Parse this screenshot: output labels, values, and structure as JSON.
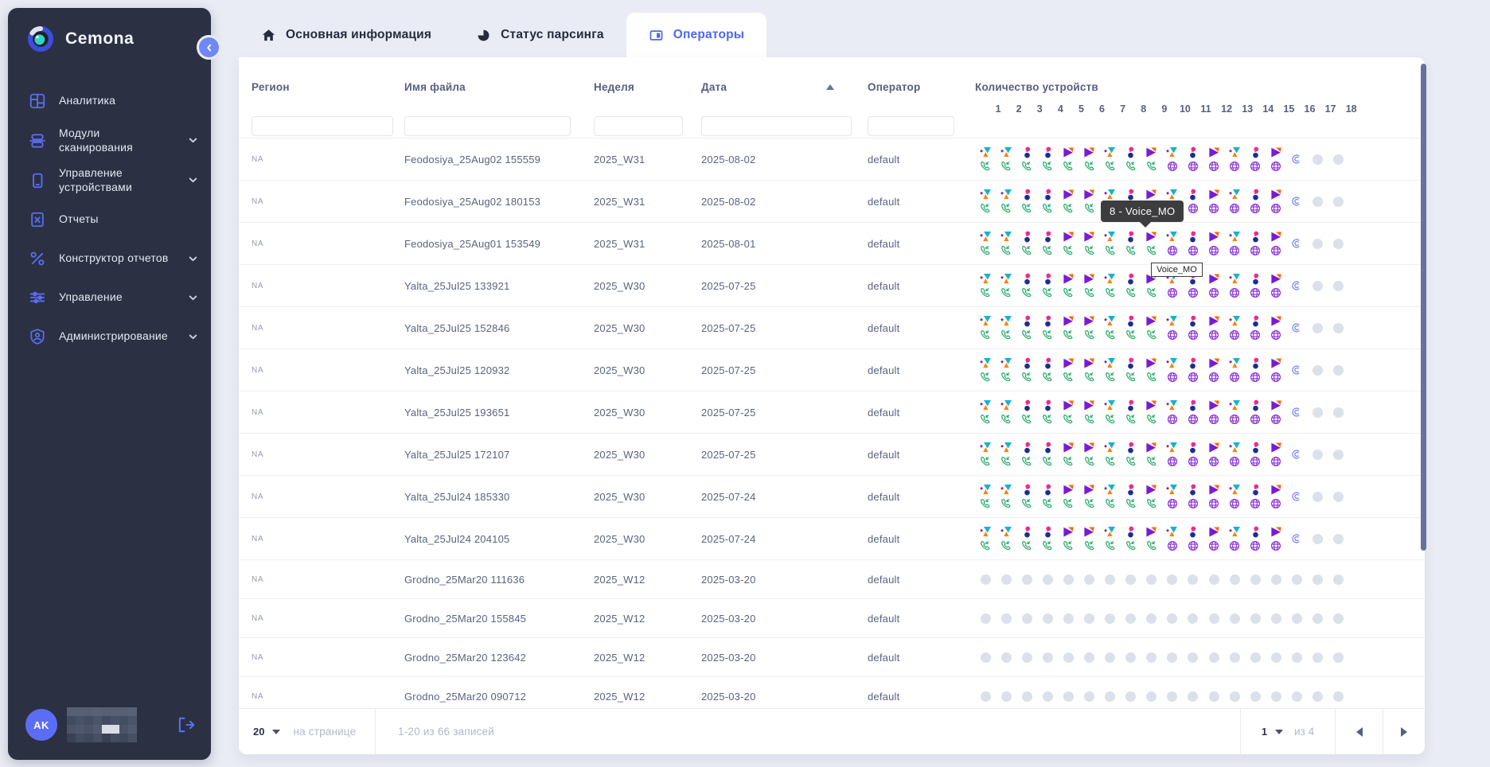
{
  "app": {
    "name": "Cemona",
    "user_initials": "AK"
  },
  "colors": {
    "sidebar_bg": "#2b3142",
    "accent_blue": "#5b6cf5",
    "active_tab_blue": "#4d68f0",
    "page_bg": "#e9ecf4",
    "operator_teal": "#17b3cb",
    "operator_orange": "#f8820c",
    "operator_pink": "#ee2a8e",
    "operator_navy": "#1c2e8f",
    "operator_purple": "#7a1bd3",
    "phone_green": "#21ab66",
    "globe_purple": "#8b2fd6",
    "empty_dot": "#dce0eb"
  },
  "sidebar": {
    "items": [
      {
        "label": "Аналитика",
        "icon": "analytics-icon",
        "expandable": false
      },
      {
        "label": "Модули сканирования",
        "icon": "modules-icon",
        "expandable": true
      },
      {
        "label": "Управление устройствами",
        "icon": "devices-icon",
        "expandable": true
      },
      {
        "label": "Отчеты",
        "icon": "reports-icon",
        "expandable": false
      },
      {
        "label": "Конструктор отчетов",
        "icon": "report-builder-icon",
        "expandable": true
      },
      {
        "label": "Управление",
        "icon": "management-icon",
        "expandable": true
      },
      {
        "label": "Администрирование",
        "icon": "admin-icon",
        "expandable": true
      }
    ]
  },
  "tabs": [
    {
      "label": "Основная информация",
      "icon": "home-icon",
      "active": false
    },
    {
      "label": "Статус парсинга",
      "icon": "parsing-icon",
      "active": false
    },
    {
      "label": "Операторы",
      "icon": "operators-icon",
      "active": true
    }
  ],
  "table": {
    "columns": {
      "region": "Регион",
      "file": "Имя файла",
      "week": "Неделя",
      "date": "Дата",
      "operator": "Оператор",
      "devices": "Количество устройств"
    },
    "device_columns": [
      "1",
      "2",
      "3",
      "4",
      "5",
      "6",
      "7",
      "8",
      "9",
      "10",
      "11",
      "12",
      "13",
      "14",
      "15",
      "16",
      "17",
      "18"
    ],
    "device_patterns": {
      "full": [
        "A:phone",
        "A:phone",
        "B:phone",
        "B:phone",
        "C:phone",
        "C:phone",
        "A:phone",
        "B:phone",
        "C:phone",
        "A:globe",
        "B:globe",
        "C:globe",
        "A:globe",
        "B:globe",
        "C:globe",
        "at",
        "dot",
        "dot"
      ],
      "empty": [
        "dot",
        "dot",
        "dot",
        "dot",
        "dot",
        "dot",
        "dot",
        "dot",
        "dot",
        "dot",
        "dot",
        "dot",
        "dot",
        "dot",
        "dot",
        "dot",
        "dot",
        "dot"
      ]
    },
    "rows": [
      {
        "region": "NA",
        "file": "Feodosiya_25Aug02 155559",
        "week": "2025_W31",
        "date": "2025-08-02",
        "operator": "default",
        "devices": "full"
      },
      {
        "region": "NA",
        "file": "Feodosiya_25Aug02 180153",
        "week": "2025_W31",
        "date": "2025-08-02",
        "operator": "default",
        "devices": "full"
      },
      {
        "region": "NA",
        "file": "Feodosiya_25Aug01 153549",
        "week": "2025_W31",
        "date": "2025-08-01",
        "operator": "default",
        "devices": "full"
      },
      {
        "region": "NA",
        "file": "Yalta_25Jul25 133921",
        "week": "2025_W30",
        "date": "2025-07-25",
        "operator": "default",
        "devices": "full"
      },
      {
        "region": "NA",
        "file": "Yalta_25Jul25 152846",
        "week": "2025_W30",
        "date": "2025-07-25",
        "operator": "default",
        "devices": "full"
      },
      {
        "region": "NA",
        "file": "Yalta_25Jul25 120932",
        "week": "2025_W30",
        "date": "2025-07-25",
        "operator": "default",
        "devices": "full"
      },
      {
        "region": "NA",
        "file": "Yalta_25Jul25 193651",
        "week": "2025_W30",
        "date": "2025-07-25",
        "operator": "default",
        "devices": "full"
      },
      {
        "region": "NA",
        "file": "Yalta_25Jul25 172107",
        "week": "2025_W30",
        "date": "2025-07-25",
        "operator": "default",
        "devices": "full"
      },
      {
        "region": "NA",
        "file": "Yalta_25Jul24 185330",
        "week": "2025_W30",
        "date": "2025-07-24",
        "operator": "default",
        "devices": "full"
      },
      {
        "region": "NA",
        "file": "Yalta_25Jul24 204105",
        "week": "2025_W30",
        "date": "2025-07-24",
        "operator": "default",
        "devices": "full"
      },
      {
        "region": "NA",
        "file": "Grodno_25Mar20 111636",
        "week": "2025_W12",
        "date": "2025-03-20",
        "operator": "default",
        "devices": "empty"
      },
      {
        "region": "NA",
        "file": "Grodno_25Mar20 155845",
        "week": "2025_W12",
        "date": "2025-03-20",
        "operator": "default",
        "devices": "empty"
      },
      {
        "region": "NA",
        "file": "Grodno_25Mar20 123642",
        "week": "2025_W12",
        "date": "2025-03-20",
        "operator": "default",
        "devices": "empty"
      },
      {
        "region": "NA",
        "file": "Grodno_25Mar20 090712",
        "week": "2025_W12",
        "date": "2025-03-20",
        "operator": "default",
        "devices": "empty"
      }
    ]
  },
  "tooltips": {
    "dark": "8 - Voice_MO",
    "light": "Voice_MO"
  },
  "pagination": {
    "page_size": "20",
    "page_size_label": "на странице",
    "range_label": "1-20 из 66 записей",
    "page": "1",
    "of_label": "из 4"
  }
}
